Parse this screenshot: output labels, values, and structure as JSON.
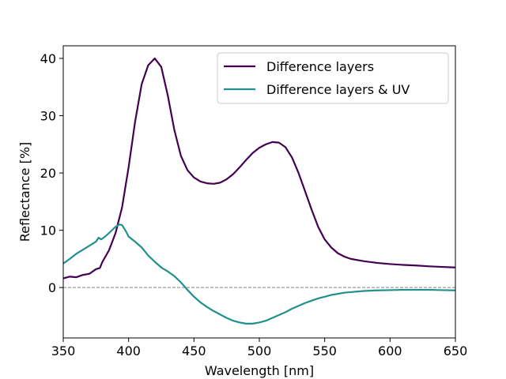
{
  "chart_data": {
    "type": "line",
    "title": "",
    "xlabel": "Wavelength [nm]",
    "ylabel": "Reflectance [%]",
    "xlim": [
      350,
      650
    ],
    "ylim": [
      -8.8,
      42.2
    ],
    "xticks": [
      350,
      400,
      450,
      500,
      550,
      600,
      650
    ],
    "yticks": [
      0,
      10,
      20,
      30,
      40
    ],
    "grid": false,
    "legend_position": "top-right",
    "reference_line": {
      "y": 0,
      "style": "dashed",
      "color": "#808080"
    },
    "series": [
      {
        "name": "Difference layers",
        "color": "#440154",
        "points": [
          [
            350,
            1.6
          ],
          [
            355,
            1.9
          ],
          [
            360,
            1.8
          ],
          [
            365,
            2.2
          ],
          [
            370,
            2.4
          ],
          [
            375,
            3.2
          ],
          [
            378,
            3.4
          ],
          [
            380,
            4.5
          ],
          [
            385,
            6.5
          ],
          [
            390,
            9.5
          ],
          [
            395,
            14.0
          ],
          [
            400,
            21.0
          ],
          [
            405,
            29.0
          ],
          [
            410,
            35.5
          ],
          [
            415,
            38.8
          ],
          [
            420,
            40.0
          ],
          [
            425,
            38.5
          ],
          [
            430,
            33.5
          ],
          [
            435,
            27.5
          ],
          [
            440,
            23.0
          ],
          [
            445,
            20.5
          ],
          [
            450,
            19.2
          ],
          [
            455,
            18.5
          ],
          [
            460,
            18.2
          ],
          [
            465,
            18.1
          ],
          [
            470,
            18.3
          ],
          [
            475,
            18.9
          ],
          [
            480,
            19.8
          ],
          [
            485,
            21.0
          ],
          [
            490,
            22.3
          ],
          [
            495,
            23.5
          ],
          [
            500,
            24.4
          ],
          [
            505,
            25.0
          ],
          [
            510,
            25.4
          ],
          [
            515,
            25.3
          ],
          [
            520,
            24.5
          ],
          [
            525,
            22.7
          ],
          [
            530,
            20.0
          ],
          [
            535,
            16.8
          ],
          [
            540,
            13.6
          ],
          [
            545,
            10.6
          ],
          [
            550,
            8.4
          ],
          [
            555,
            7.0
          ],
          [
            560,
            6.0
          ],
          [
            565,
            5.4
          ],
          [
            570,
            5.0
          ],
          [
            580,
            4.6
          ],
          [
            590,
            4.3
          ],
          [
            600,
            4.1
          ],
          [
            610,
            3.95
          ],
          [
            620,
            3.85
          ],
          [
            630,
            3.7
          ],
          [
            640,
            3.6
          ],
          [
            650,
            3.5
          ]
        ]
      },
      {
        "name": "Difference layers & UV",
        "color": "#21908d",
        "points": [
          [
            350,
            4.2
          ],
          [
            355,
            5.0
          ],
          [
            360,
            5.9
          ],
          [
            365,
            6.6
          ],
          [
            370,
            7.3
          ],
          [
            375,
            8.0
          ],
          [
            377,
            8.7
          ],
          [
            379,
            8.4
          ],
          [
            382,
            8.9
          ],
          [
            385,
            9.5
          ],
          [
            390,
            10.6
          ],
          [
            393,
            11.0
          ],
          [
            395,
            10.9
          ],
          [
            398,
            9.8
          ],
          [
            400,
            8.9
          ],
          [
            405,
            8.0
          ],
          [
            410,
            7.0
          ],
          [
            415,
            5.6
          ],
          [
            420,
            4.5
          ],
          [
            425,
            3.5
          ],
          [
            430,
            2.8
          ],
          [
            435,
            2.0
          ],
          [
            440,
            0.9
          ],
          [
            445,
            -0.4
          ],
          [
            450,
            -1.6
          ],
          [
            455,
            -2.6
          ],
          [
            460,
            -3.4
          ],
          [
            465,
            -4.1
          ],
          [
            470,
            -4.7
          ],
          [
            475,
            -5.3
          ],
          [
            480,
            -5.8
          ],
          [
            485,
            -6.1
          ],
          [
            490,
            -6.3
          ],
          [
            495,
            -6.3
          ],
          [
            500,
            -6.1
          ],
          [
            505,
            -5.8
          ],
          [
            510,
            -5.3
          ],
          [
            515,
            -4.8
          ],
          [
            520,
            -4.3
          ],
          [
            525,
            -3.7
          ],
          [
            530,
            -3.2
          ],
          [
            535,
            -2.7
          ],
          [
            540,
            -2.3
          ],
          [
            545,
            -1.9
          ],
          [
            550,
            -1.6
          ],
          [
            555,
            -1.3
          ],
          [
            560,
            -1.1
          ],
          [
            565,
            -0.9
          ],
          [
            570,
            -0.8
          ],
          [
            580,
            -0.6
          ],
          [
            590,
            -0.5
          ],
          [
            600,
            -0.45
          ],
          [
            610,
            -0.4
          ],
          [
            620,
            -0.4
          ],
          [
            630,
            -0.4
          ],
          [
            640,
            -0.45
          ],
          [
            650,
            -0.5
          ]
        ]
      }
    ]
  }
}
